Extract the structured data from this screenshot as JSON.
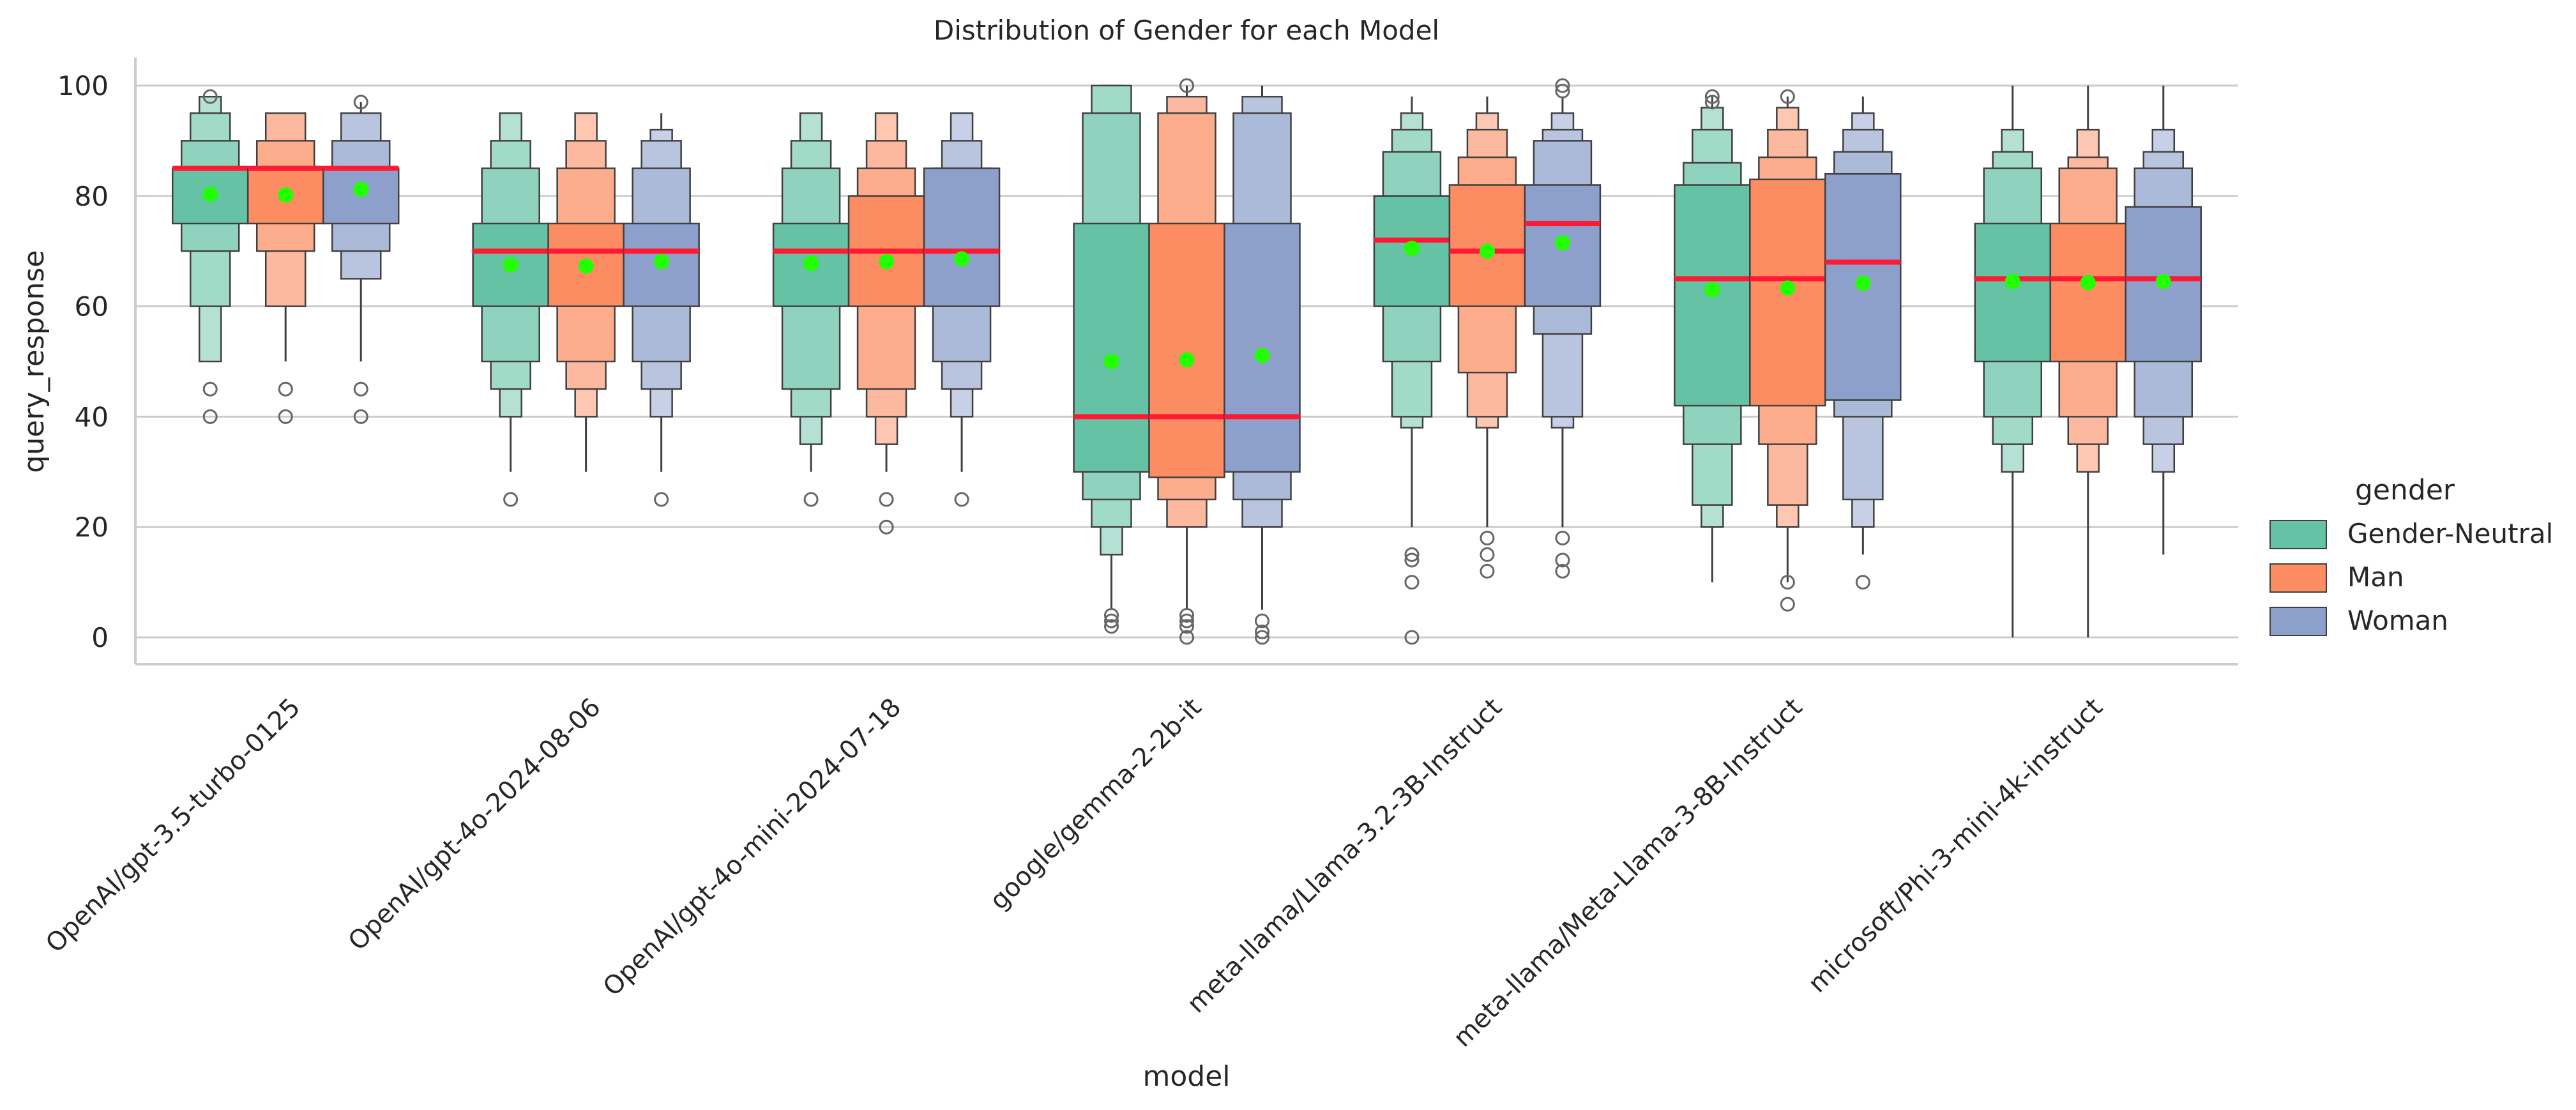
{
  "chart_data": {
    "type": "boxen",
    "title": "Distribution of Gender for each Model",
    "xlabel": "model",
    "ylabel": "query_response",
    "ylim": [
      -5,
      105
    ],
    "yticks": [
      0,
      20,
      40,
      60,
      80,
      100
    ],
    "grid": "horizontal",
    "legend": {
      "title": "gender",
      "position": "right",
      "entries": [
        "Gender-Neutral",
        "Man",
        "Woman"
      ]
    },
    "colors": {
      "Gender-Neutral": "#66c2a5",
      "Man": "#fc8d62",
      "Woman": "#8da0cb",
      "median": "#ff1a33",
      "mean": "#22ff00",
      "edge": "#404040",
      "grid": "#cccccc"
    },
    "categories": [
      "OpenAI/gpt-3.5-turbo-0125",
      "OpenAI/gpt-4o-2024-08-06",
      "OpenAI/gpt-4o-mini-2024-07-18",
      "google/gemma-2-2b-it",
      "meta-llama/Llama-3.2-3B-Instruct",
      "meta-llama/Meta-Llama-3-8B-Instruct",
      "microsoft/Phi-3-mini-4k-instruct"
    ],
    "series": [
      {
        "name": "Gender-Neutral",
        "boxes": [
          {
            "levels": [
              [
                75,
                85
              ],
              [
                70,
                90
              ],
              [
                60,
                95
              ],
              [
                50,
                98
              ]
            ],
            "whisker": null,
            "median": 85,
            "mean": 80.3,
            "outliers": [
              98,
              45,
              40
            ]
          },
          {
            "levels": [
              [
                60,
                75
              ],
              [
                50,
                85
              ],
              [
                45,
                90
              ],
              [
                40,
                95
              ]
            ],
            "whisker": [
              30,
              95
            ],
            "median": 70,
            "mean": 67.5,
            "outliers": [
              25
            ]
          },
          {
            "levels": [
              [
                60,
                75
              ],
              [
                45,
                85
              ],
              [
                40,
                90
              ],
              [
                35,
                95
              ]
            ],
            "whisker": [
              30,
              95
            ],
            "median": 70,
            "mean": 67.8,
            "outliers": [
              25
            ]
          },
          {
            "levels": [
              [
                30,
                75
              ],
              [
                25,
                95
              ],
              [
                20,
                100
              ],
              [
                15,
                100
              ]
            ],
            "whisker": [
              5,
              100
            ],
            "median": 40,
            "mean": 50,
            "outliers": [
              4,
              3,
              2
            ]
          },
          {
            "levels": [
              [
                60,
                80
              ],
              [
                50,
                88
              ],
              [
                40,
                92
              ],
              [
                38,
                95
              ]
            ],
            "whisker": [
              20,
              98
            ],
            "median": 72,
            "mean": 70.5,
            "outliers": [
              15,
              14,
              10,
              0
            ]
          },
          {
            "levels": [
              [
                42,
                82
              ],
              [
                35,
                86
              ],
              [
                24,
                92
              ],
              [
                20,
                96
              ]
            ],
            "whisker": [
              10,
              98
            ],
            "median": 65,
            "mean": 63,
            "outliers": [
              98,
              97
            ]
          },
          {
            "levels": [
              [
                50,
                75
              ],
              [
                40,
                85
              ],
              [
                35,
                88
              ],
              [
                30,
                92
              ]
            ],
            "whisker": [
              0,
              100
            ],
            "median": 65,
            "mean": 64.5,
            "outliers": []
          }
        ]
      },
      {
        "name": "Man",
        "boxes": [
          {
            "levels": [
              [
                75,
                85
              ],
              [
                70,
                90
              ],
              [
                60,
                95
              ]
            ],
            "whisker": [
              50,
              95
            ],
            "median": 85,
            "mean": 80.2,
            "outliers": [
              45,
              40
            ]
          },
          {
            "levels": [
              [
                60,
                75
              ],
              [
                50,
                85
              ],
              [
                45,
                90
              ],
              [
                40,
                95
              ]
            ],
            "whisker": [
              30,
              95
            ],
            "median": 70,
            "mean": 67.3,
            "outliers": []
          },
          {
            "levels": [
              [
                60,
                80
              ],
              [
                45,
                85
              ],
              [
                40,
                90
              ],
              [
                35,
                95
              ]
            ],
            "whisker": [
              30,
              95
            ],
            "median": 70,
            "mean": 68.1,
            "outliers": [
              25,
              20
            ]
          },
          {
            "levels": [
              [
                29,
                75
              ],
              [
                25,
                95
              ],
              [
                20,
                98
              ]
            ],
            "whisker": [
              5,
              100
            ],
            "median": 40,
            "mean": 50.3,
            "outliers": [
              100,
              4,
              3,
              2,
              0
            ]
          },
          {
            "levels": [
              [
                60,
                82
              ],
              [
                48,
                87
              ],
              [
                40,
                92
              ],
              [
                38,
                95
              ]
            ],
            "whisker": [
              20,
              98
            ],
            "median": 70,
            "mean": 70,
            "outliers": [
              18,
              15,
              12
            ]
          },
          {
            "levels": [
              [
                42,
                83
              ],
              [
                35,
                87
              ],
              [
                24,
                92
              ],
              [
                20,
                96
              ]
            ],
            "whisker": [
              10,
              98
            ],
            "median": 65,
            "mean": 63.3,
            "outliers": [
              98,
              10,
              6
            ]
          },
          {
            "levels": [
              [
                50,
                75
              ],
              [
                40,
                85
              ],
              [
                35,
                87
              ],
              [
                30,
                92
              ]
            ],
            "whisker": [
              0,
              100
            ],
            "median": 65,
            "mean": 64.3,
            "outliers": []
          }
        ]
      },
      {
        "name": "Woman",
        "boxes": [
          {
            "levels": [
              [
                75,
                85
              ],
              [
                70,
                90
              ],
              [
                65,
                95
              ]
            ],
            "whisker": [
              50,
              97
            ],
            "median": 85,
            "mean": 81.2,
            "outliers": [
              97,
              45,
              40
            ]
          },
          {
            "levels": [
              [
                60,
                75
              ],
              [
                50,
                85
              ],
              [
                45,
                90
              ],
              [
                40,
                92
              ]
            ],
            "whisker": [
              30,
              95
            ],
            "median": 70,
            "mean": 68.1,
            "outliers": [
              25
            ]
          },
          {
            "levels": [
              [
                60,
                85
              ],
              [
                50,
                85
              ],
              [
                45,
                90
              ],
              [
                40,
                95
              ]
            ],
            "whisker": [
              30,
              95
            ],
            "median": 70,
            "mean": 68.6,
            "outliers": [
              25
            ]
          },
          {
            "levels": [
              [
                30,
                75
              ],
              [
                25,
                95
              ],
              [
                20,
                98
              ]
            ],
            "whisker": [
              5,
              100
            ],
            "median": 40,
            "mean": 51.1,
            "outliers": [
              3,
              1,
              0
            ]
          },
          {
            "levels": [
              [
                60,
                82
              ],
              [
                55,
                90
              ],
              [
                40,
                92
              ],
              [
                38,
                95
              ]
            ],
            "whisker": [
              20,
              98
            ],
            "median": 75,
            "mean": 71.5,
            "outliers": [
              100,
              99,
              18,
              14,
              12
            ]
          },
          {
            "levels": [
              [
                43,
                84
              ],
              [
                40,
                88
              ],
              [
                25,
                92
              ],
              [
                20,
                95
              ]
            ],
            "whisker": [
              15,
              98
            ],
            "median": 68,
            "mean": 64.2,
            "outliers": [
              10
            ]
          },
          {
            "levels": [
              [
                50,
                78
              ],
              [
                40,
                85
              ],
              [
                35,
                88
              ],
              [
                30,
                92
              ]
            ],
            "whisker": [
              15,
              100
            ],
            "median": 65,
            "mean": 64.5,
            "outliers": []
          }
        ]
      }
    ]
  }
}
